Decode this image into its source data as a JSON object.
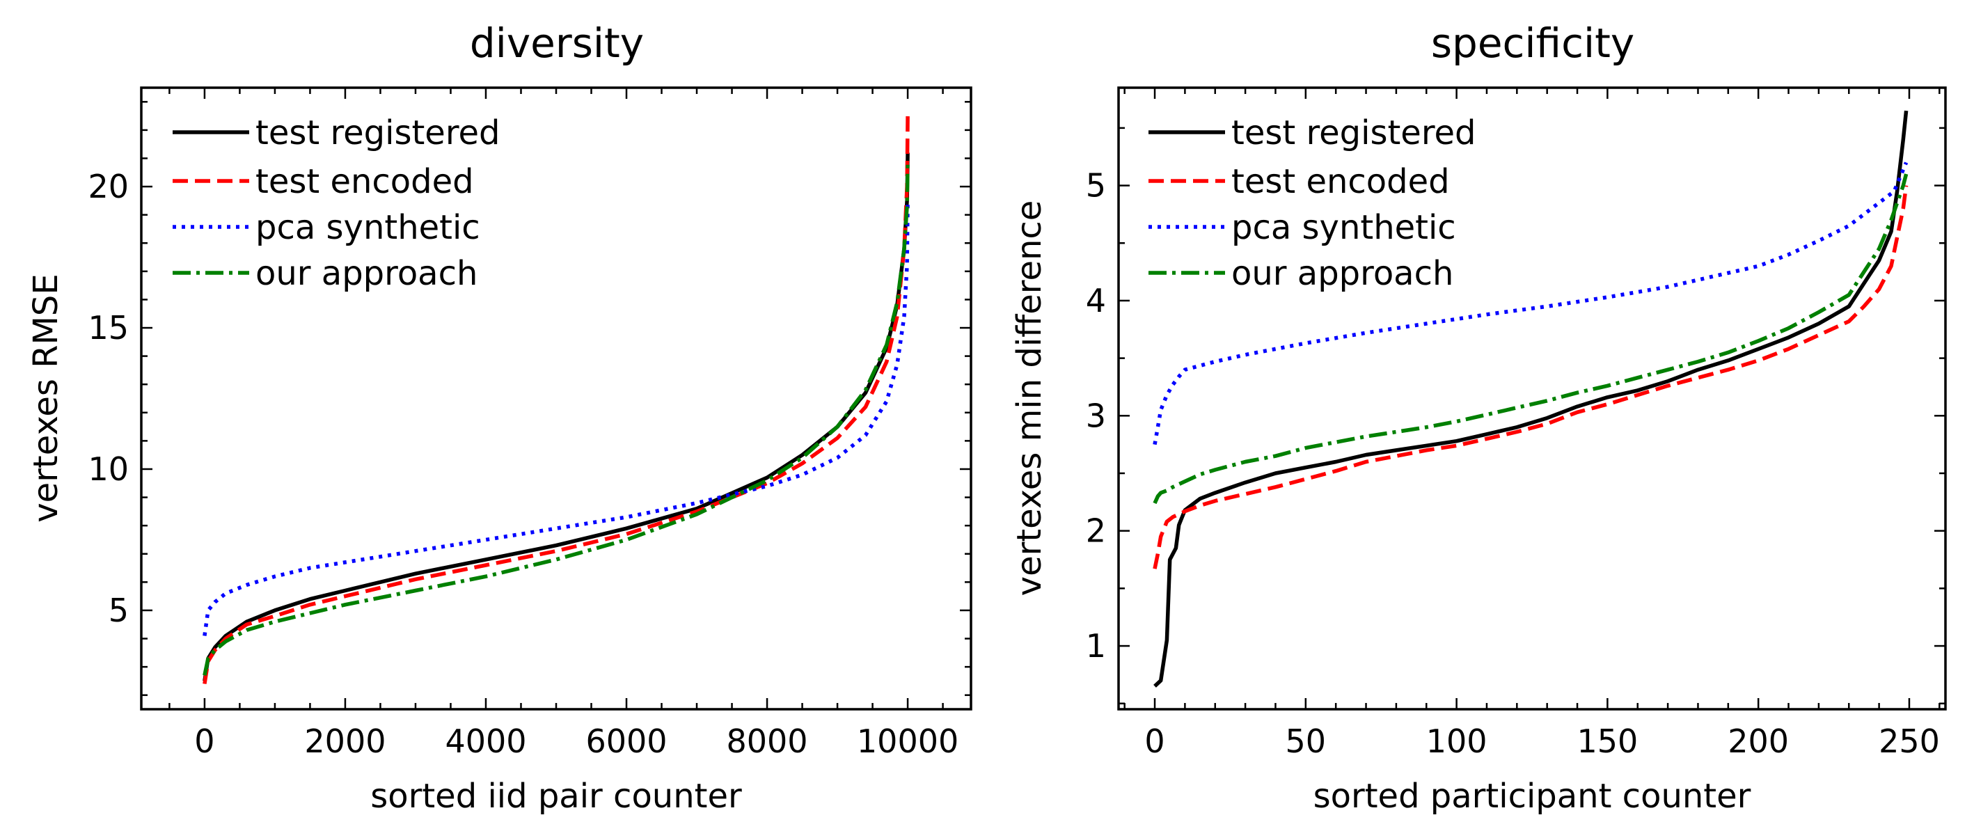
{
  "chart_data": [
    {
      "type": "line",
      "title": "diversity",
      "xlabel": "sorted iid pair counter",
      "ylabel": "vertexes RMSE",
      "xlim": [
        -900,
        10900
      ],
      "ylim": [
        1.5,
        23.5
      ],
      "xticks": [
        0,
        2000,
        4000,
        6000,
        8000,
        10000
      ],
      "xtick_labels": [
        "0",
        "2000",
        "4000",
        "6000",
        "8000",
        "10000"
      ],
      "xminor": [
        -500,
        500,
        1000,
        1500,
        2500,
        3000,
        3500,
        4500,
        5000,
        5500,
        6500,
        7000,
        7500,
        8500,
        9000,
        9500,
        10500
      ],
      "yticks": [
        5,
        10,
        15,
        20
      ],
      "ytick_labels": [
        "5",
        "10",
        "15",
        "20"
      ],
      "yminor": [
        2,
        3,
        4,
        6,
        7,
        8,
        9,
        11,
        12,
        13,
        14,
        16,
        17,
        18,
        19,
        21,
        22,
        23
      ],
      "legend_position": "top-left",
      "series": [
        {
          "name": "test registered",
          "color": "#000000",
          "style": "solid",
          "x": [
            0,
            50,
            150,
            300,
            600,
            1000,
            1500,
            2000,
            3000,
            4000,
            5000,
            6000,
            7000,
            8000,
            8500,
            9000,
            9400,
            9700,
            9850,
            9950,
            9990,
            10000
          ],
          "y": [
            2.5,
            3.3,
            3.7,
            4.1,
            4.6,
            5.0,
            5.4,
            5.7,
            6.3,
            6.8,
            7.3,
            7.9,
            8.6,
            9.7,
            10.5,
            11.5,
            12.7,
            14.3,
            15.8,
            17.8,
            19.5,
            21.2
          ]
        },
        {
          "name": "test encoded",
          "color": "#ff0000",
          "style": "dashed",
          "x": [
            0,
            50,
            150,
            300,
            600,
            1000,
            1500,
            2000,
            3000,
            4000,
            5000,
            6000,
            7000,
            8000,
            8500,
            9000,
            9400,
            9700,
            9850,
            9950,
            9990,
            10000
          ],
          "y": [
            2.4,
            3.2,
            3.6,
            4.0,
            4.5,
            4.8,
            5.2,
            5.5,
            6.1,
            6.6,
            7.1,
            7.7,
            8.5,
            9.5,
            10.2,
            11.1,
            12.2,
            13.8,
            15.4,
            17.8,
            20.0,
            22.5
          ]
        },
        {
          "name": "pca synthetic",
          "color": "#0000ff",
          "style": "dotted",
          "x": [
            0,
            50,
            150,
            300,
            600,
            1000,
            1500,
            2000,
            3000,
            4000,
            5000,
            6000,
            7000,
            8000,
            8500,
            9000,
            9400,
            9700,
            9850,
            9950,
            9990,
            10000
          ],
          "y": [
            4.1,
            5.0,
            5.3,
            5.6,
            5.9,
            6.2,
            6.5,
            6.7,
            7.1,
            7.5,
            7.9,
            8.3,
            8.8,
            9.4,
            9.8,
            10.4,
            11.2,
            12.4,
            13.7,
            15.4,
            17.2,
            19.5
          ]
        },
        {
          "name": "our approach",
          "color": "#008000",
          "style": "dashdot",
          "x": [
            0,
            50,
            150,
            300,
            600,
            1000,
            1500,
            2000,
            3000,
            4000,
            5000,
            6000,
            7000,
            8000,
            8500,
            9000,
            9400,
            9700,
            9850,
            9950,
            9990,
            10000
          ],
          "y": [
            2.7,
            3.3,
            3.6,
            3.9,
            4.3,
            4.6,
            4.9,
            5.2,
            5.7,
            6.2,
            6.8,
            7.5,
            8.4,
            9.6,
            10.4,
            11.5,
            12.8,
            14.4,
            15.9,
            17.8,
            19.3,
            20.8
          ]
        }
      ]
    },
    {
      "type": "line",
      "title": "specificity",
      "xlabel": "sorted participant counter",
      "ylabel": "vertexes min difference",
      "xlim": [
        -12,
        262
      ],
      "ylim": [
        0.45,
        5.85
      ],
      "xticks": [
        0,
        50,
        100,
        150,
        200,
        250
      ],
      "xtick_labels": [
        "0",
        "50",
        "100",
        "150",
        "200",
        "250"
      ],
      "xminor": [
        -10,
        10,
        20,
        30,
        40,
        60,
        70,
        80,
        90,
        110,
        120,
        130,
        140,
        160,
        170,
        180,
        190,
        210,
        220,
        230,
        240,
        260
      ],
      "yticks": [
        1,
        2,
        3,
        4,
        5
      ],
      "ytick_labels": [
        "1",
        "2",
        "3",
        "4",
        "5"
      ],
      "yminor": [
        0.5,
        1.5,
        2.5,
        3.5,
        4.5,
        5.5
      ],
      "legend_position": "top-left",
      "series": [
        {
          "name": "test registered",
          "color": "#000000",
          "style": "solid",
          "x": [
            0,
            2,
            4,
            5,
            7,
            8,
            10,
            15,
            20,
            30,
            40,
            50,
            60,
            70,
            80,
            90,
            100,
            110,
            120,
            130,
            140,
            150,
            160,
            170,
            180,
            190,
            200,
            210,
            220,
            230,
            235,
            240,
            244,
            246,
            248,
            249
          ],
          "y": [
            0.65,
            0.7,
            1.05,
            1.75,
            1.85,
            2.05,
            2.18,
            2.28,
            2.33,
            2.42,
            2.5,
            2.55,
            2.6,
            2.66,
            2.7,
            2.74,
            2.78,
            2.84,
            2.9,
            2.98,
            3.08,
            3.16,
            3.22,
            3.3,
            3.4,
            3.48,
            3.58,
            3.68,
            3.8,
            3.95,
            4.15,
            4.35,
            4.6,
            4.95,
            5.4,
            5.65
          ]
        },
        {
          "name": "test encoded",
          "color": "#ff0000",
          "style": "dashed",
          "x": [
            0,
            1,
            2,
            4,
            6,
            10,
            15,
            20,
            30,
            40,
            50,
            60,
            70,
            80,
            90,
            100,
            110,
            120,
            130,
            140,
            150,
            160,
            170,
            180,
            190,
            200,
            210,
            220,
            230,
            235,
            240,
            244,
            246,
            248,
            249
          ],
          "y": [
            1.67,
            1.8,
            1.95,
            2.08,
            2.12,
            2.17,
            2.22,
            2.26,
            2.32,
            2.38,
            2.45,
            2.52,
            2.6,
            2.65,
            2.7,
            2.74,
            2.8,
            2.86,
            2.93,
            3.03,
            3.1,
            3.18,
            3.26,
            3.33,
            3.4,
            3.48,
            3.58,
            3.7,
            3.82,
            3.95,
            4.1,
            4.3,
            4.55,
            4.8,
            5.0
          ]
        },
        {
          "name": "pca synthetic",
          "color": "#0000ff",
          "style": "dotted",
          "x": [
            0,
            1,
            2,
            4,
            6,
            8,
            10,
            20,
            30,
            50,
            70,
            90,
            110,
            130,
            150,
            170,
            190,
            200,
            210,
            220,
            230,
            240,
            245,
            249
          ],
          "y": [
            2.75,
            2.9,
            3.05,
            3.18,
            3.27,
            3.34,
            3.4,
            3.47,
            3.53,
            3.63,
            3.72,
            3.8,
            3.88,
            3.95,
            4.03,
            4.12,
            4.24,
            4.3,
            4.4,
            4.52,
            4.65,
            4.85,
            4.95,
            5.2
          ]
        },
        {
          "name": "our approach",
          "color": "#008000",
          "style": "dashdot",
          "x": [
            0,
            1,
            2,
            4,
            6,
            10,
            15,
            20,
            30,
            40,
            50,
            60,
            70,
            80,
            90,
            100,
            110,
            120,
            130,
            140,
            150,
            160,
            170,
            180,
            190,
            200,
            210,
            220,
            230,
            235,
            240,
            244,
            246,
            248,
            249
          ],
          "y": [
            2.24,
            2.3,
            2.33,
            2.35,
            2.38,
            2.43,
            2.49,
            2.53,
            2.6,
            2.65,
            2.72,
            2.77,
            2.82,
            2.86,
            2.9,
            2.95,
            3.01,
            3.07,
            3.13,
            3.2,
            3.26,
            3.33,
            3.4,
            3.47,
            3.55,
            3.65,
            3.76,
            3.9,
            4.05,
            4.25,
            4.45,
            4.7,
            4.85,
            5.0,
            5.1
          ]
        }
      ]
    }
  ]
}
